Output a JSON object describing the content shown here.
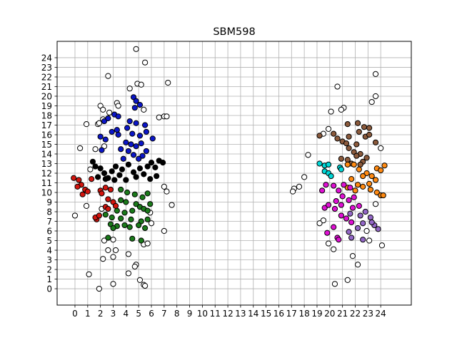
{
  "chart_data": {
    "type": "scatter",
    "title": "SBM598",
    "xlabel": "",
    "ylabel": "",
    "xlim": [
      -1.4,
      26.4
    ],
    "ylim": [
      -1.7,
      25.7
    ],
    "xticks": [
      0,
      1,
      2,
      3,
      4,
      5,
      6,
      7,
      8,
      9,
      10,
      11,
      12,
      13,
      14,
      15,
      16,
      17,
      18,
      19,
      20,
      21,
      22,
      23,
      24
    ],
    "yticks": [
      0,
      1,
      2,
      3,
      4,
      5,
      6,
      7,
      8,
      9,
      10,
      11,
      12,
      13,
      14,
      15,
      16,
      17,
      18,
      19,
      20,
      21,
      22,
      23,
      24
    ],
    "grid": true,
    "legend": "none",
    "marker_edge_color": "#000000",
    "series": [
      {
        "color": "#ffffff",
        "points": [
          [
            4.8,
            24.9
          ],
          [
            5.5,
            23.5
          ],
          [
            2.6,
            22.1
          ],
          [
            7.3,
            21.4
          ],
          [
            4.9,
            21.3
          ],
          [
            5.2,
            21.2
          ],
          [
            4.3,
            20.8
          ],
          [
            3.3,
            19.3
          ],
          [
            3.4,
            19.0
          ],
          [
            2.0,
            19.0
          ],
          [
            2.2,
            18.6
          ],
          [
            2.7,
            18.3
          ],
          [
            6.6,
            17.8
          ],
          [
            7.0,
            17.9
          ],
          [
            7.2,
            17.9
          ],
          [
            5.4,
            18.6
          ],
          [
            0.9,
            17.1
          ],
          [
            1.8,
            17.1
          ],
          [
            2.2,
            17.6
          ],
          [
            1.9,
            17.2
          ],
          [
            0.4,
            14.6
          ],
          [
            1.6,
            14.5
          ],
          [
            2.3,
            14.8
          ],
          [
            1.2,
            12.4
          ],
          [
            0.9,
            8.6
          ],
          [
            2.1,
            8.3
          ],
          [
            0.0,
            7.6
          ],
          [
            7.0,
            10.6
          ],
          [
            7.2,
            10.1
          ],
          [
            7.6,
            8.7
          ],
          [
            5.9,
            7.9
          ],
          [
            6.0,
            6.8
          ],
          [
            7.0,
            6.0
          ],
          [
            2.3,
            5.0
          ],
          [
            2.6,
            4.0
          ],
          [
            2.2,
            3.1
          ],
          [
            3.0,
            3.3
          ],
          [
            3.2,
            4.0
          ],
          [
            3.0,
            5.1
          ],
          [
            4.2,
            3.6
          ],
          [
            4.8,
            2.5
          ],
          [
            4.7,
            2.3
          ],
          [
            5.4,
            4.6
          ],
          [
            5.7,
            4.7
          ],
          [
            1.1,
            1.5
          ],
          [
            4.2,
            1.6
          ],
          [
            3.0,
            0.5
          ],
          [
            5.1,
            0.9
          ],
          [
            5.4,
            0.4
          ],
          [
            5.5,
            0.3
          ],
          [
            1.9,
            0.0
          ],
          [
            18.3,
            13.9
          ],
          [
            18.0,
            11.6
          ],
          [
            17.6,
            10.6
          ],
          [
            17.2,
            10.4
          ],
          [
            17.1,
            10.1
          ],
          [
            19.5,
            7.1
          ],
          [
            19.2,
            6.8
          ],
          [
            19.9,
            4.7
          ],
          [
            20.3,
            4.1
          ],
          [
            20.4,
            0.5
          ],
          [
            20.6,
            21.0
          ],
          [
            21.1,
            18.8
          ],
          [
            20.9,
            18.6
          ],
          [
            20.1,
            18.4
          ],
          [
            19.9,
            16.6
          ],
          [
            19.5,
            16.1
          ],
          [
            23.3,
            19.4
          ],
          [
            23.6,
            20.0
          ],
          [
            23.6,
            22.3
          ],
          [
            24.0,
            14.6
          ],
          [
            23.6,
            8.8
          ],
          [
            22.9,
            6.0
          ],
          [
            23.1,
            5.0
          ],
          [
            24.1,
            4.5
          ],
          [
            21.8,
            3.4
          ],
          [
            22.2,
            2.5
          ],
          [
            21.4,
            0.9
          ]
        ]
      },
      {
        "color": "#0b16c9",
        "points": [
          [
            4.6,
            19.9
          ],
          [
            4.8,
            19.5
          ],
          [
            5.1,
            19.1
          ],
          [
            4.7,
            18.8
          ],
          [
            3.1,
            18.1
          ],
          [
            3.4,
            17.9
          ],
          [
            2.3,
            17.4
          ],
          [
            2.6,
            17.7
          ],
          [
            4.3,
            17.4
          ],
          [
            4.8,
            17.2
          ],
          [
            5.5,
            17.0
          ],
          [
            4.1,
            16.7
          ],
          [
            3.3,
            16.5
          ],
          [
            2.9,
            16.3
          ],
          [
            3.4,
            16.0
          ],
          [
            4.5,
            16.1
          ],
          [
            5.1,
            15.9
          ],
          [
            5.6,
            16.3
          ],
          [
            6.1,
            15.6
          ],
          [
            2.0,
            15.8
          ],
          [
            2.4,
            15.5
          ],
          [
            4.0,
            15.2
          ],
          [
            4.4,
            15.0
          ],
          [
            4.8,
            14.8
          ],
          [
            5.2,
            15.1
          ],
          [
            3.6,
            14.5
          ],
          [
            4.2,
            14.3
          ],
          [
            5.6,
            14.3
          ],
          [
            2.1,
            14.4
          ],
          [
            4.6,
            13.9
          ],
          [
            5.3,
            13.8
          ],
          [
            3.8,
            13.5
          ],
          [
            5.0,
            13.5
          ]
        ]
      },
      {
        "color": "#000000",
        "points": [
          [
            1.4,
            13.2
          ],
          [
            1.6,
            12.7
          ],
          [
            2.0,
            12.5
          ],
          [
            2.3,
            12.0
          ],
          [
            1.8,
            11.6
          ],
          [
            2.6,
            11.5
          ],
          [
            2.9,
            12.2
          ],
          [
            3.2,
            12.7
          ],
          [
            3.5,
            11.8
          ],
          [
            3.7,
            12.4
          ],
          [
            4.0,
            11.3
          ],
          [
            4.2,
            12.9
          ],
          [
            4.6,
            12.1
          ],
          [
            4.8,
            11.6
          ],
          [
            5.1,
            12.5
          ],
          [
            5.4,
            11.9
          ],
          [
            5.7,
            12.7
          ],
          [
            6.0,
            13.1
          ],
          [
            6.3,
            12.6
          ],
          [
            6.6,
            13.3
          ],
          [
            6.9,
            13.1
          ],
          [
            6.4,
            11.7
          ],
          [
            5.9,
            11.4
          ],
          [
            3.1,
            11.3
          ],
          [
            2.4,
            11.4
          ]
        ]
      },
      {
        "color": "#d4150e",
        "points": [
          [
            -0.1,
            11.5
          ],
          [
            0.3,
            11.3
          ],
          [
            0.5,
            10.8
          ],
          [
            0.8,
            10.3
          ],
          [
            1.0,
            10.1
          ],
          [
            1.3,
            11.4
          ],
          [
            0.2,
            10.6
          ],
          [
            0.6,
            9.8
          ],
          [
            2.0,
            10.2
          ],
          [
            2.4,
            10.5
          ],
          [
            2.8,
            10.3
          ],
          [
            2.1,
            9.9
          ],
          [
            2.6,
            9.3
          ],
          [
            3.0,
            9.0
          ],
          [
            2.4,
            8.5
          ],
          [
            2.6,
            8.3
          ],
          [
            3.2,
            8.6
          ],
          [
            1.7,
            7.2
          ],
          [
            1.6,
            7.4
          ],
          [
            1.9,
            7.6
          ]
        ]
      },
      {
        "color": "#1a7a1a",
        "points": [
          [
            3.6,
            10.3
          ],
          [
            4.1,
            10.0
          ],
          [
            4.7,
            9.8
          ],
          [
            5.3,
            9.5
          ],
          [
            5.7,
            9.9
          ],
          [
            3.6,
            9.2
          ],
          [
            4.0,
            9.0
          ],
          [
            4.8,
            8.8
          ],
          [
            5.1,
            8.5
          ],
          [
            5.4,
            8.3
          ],
          [
            3.3,
            8.1
          ],
          [
            3.9,
            7.9
          ],
          [
            4.5,
            8.1
          ],
          [
            2.4,
            7.7
          ],
          [
            2.9,
            7.4
          ],
          [
            3.6,
            7.3
          ],
          [
            4.4,
            7.2
          ],
          [
            5.2,
            7.0
          ],
          [
            5.7,
            7.2
          ],
          [
            2.8,
            6.7
          ],
          [
            3.3,
            6.5
          ],
          [
            3.9,
            6.6
          ],
          [
            4.3,
            6.4
          ],
          [
            5.0,
            6.6
          ],
          [
            5.5,
            6.3
          ],
          [
            2.6,
            5.3
          ],
          [
            4.5,
            5.2
          ],
          [
            5.2,
            5.0
          ],
          [
            3.0,
            6.3
          ],
          [
            5.9,
            8.8
          ],
          [
            5.7,
            8.1
          ]
        ]
      },
      {
        "color": "#8b5a3c",
        "points": [
          [
            19.2,
            15.9
          ],
          [
            20.3,
            16.1
          ],
          [
            20.6,
            15.6
          ],
          [
            21.0,
            15.3
          ],
          [
            21.5,
            15.8
          ],
          [
            21.4,
            17.1
          ],
          [
            22.2,
            17.2
          ],
          [
            22.7,
            16.8
          ],
          [
            23.1,
            16.7
          ],
          [
            22.3,
            16.3
          ],
          [
            22.8,
            15.8
          ],
          [
            21.3,
            15.1
          ],
          [
            21.5,
            14.6
          ],
          [
            21.9,
            14.2
          ],
          [
            22.4,
            14.0
          ],
          [
            22.9,
            13.6
          ],
          [
            20.9,
            13.5
          ],
          [
            21.4,
            13.4
          ],
          [
            22.1,
            13.8
          ],
          [
            22.6,
            13.2
          ],
          [
            21.7,
            13.0
          ],
          [
            22.4,
            12.9
          ],
          [
            23.6,
            15.2
          ],
          [
            23.1,
            16.0
          ],
          [
            22.1,
            15.0
          ]
        ]
      },
      {
        "color": "#00d7d7",
        "points": [
          [
            19.2,
            13.0
          ],
          [
            19.6,
            12.8
          ],
          [
            19.9,
            12.9
          ],
          [
            19.6,
            12.2
          ],
          [
            19.9,
            12.0
          ],
          [
            20.1,
            11.7
          ],
          [
            20.8,
            12.6
          ],
          [
            20.9,
            12.4
          ]
        ]
      },
      {
        "color": "#ff8a12",
        "points": [
          [
            21.9,
            12.9
          ],
          [
            22.3,
            12.4
          ],
          [
            22.9,
            12.0
          ],
          [
            23.3,
            11.7
          ],
          [
            23.7,
            12.5
          ],
          [
            24.3,
            12.8
          ],
          [
            24.0,
            12.3
          ],
          [
            23.6,
            11.3
          ],
          [
            23.1,
            10.9
          ],
          [
            22.6,
            10.6
          ],
          [
            22.2,
            10.8
          ],
          [
            21.7,
            11.4
          ],
          [
            21.4,
            10.5
          ],
          [
            22.0,
            10.2
          ],
          [
            23.7,
            10.0
          ],
          [
            24.0,
            9.7
          ],
          [
            24.2,
            9.7
          ],
          [
            23.2,
            10.3
          ],
          [
            22.6,
            11.7
          ],
          [
            21.4,
            12.9
          ]
        ]
      },
      {
        "color": "#e010d4",
        "points": [
          [
            19.4,
            10.2
          ],
          [
            19.7,
            10.8
          ],
          [
            20.3,
            10.7
          ],
          [
            20.7,
            10.2
          ],
          [
            21.1,
            10.8
          ],
          [
            21.6,
            10.5
          ],
          [
            21.0,
            9.6
          ],
          [
            21.5,
            9.2
          ],
          [
            21.9,
            9.5
          ],
          [
            20.5,
            9.1
          ],
          [
            20.9,
            8.7
          ],
          [
            19.6,
            8.4
          ],
          [
            19.9,
            8.7
          ],
          [
            20.4,
            8.3
          ],
          [
            21.8,
            8.4
          ],
          [
            22.3,
            8.6
          ],
          [
            20.9,
            7.6
          ],
          [
            21.3,
            7.3
          ],
          [
            21.7,
            6.9
          ],
          [
            20.3,
            6.4
          ],
          [
            19.8,
            5.8
          ],
          [
            20.6,
            5.3
          ],
          [
            20.7,
            5.1
          ]
        ]
      },
      {
        "color": "#9468c8",
        "points": [
          [
            21.6,
            7.8
          ],
          [
            22.4,
            7.6
          ],
          [
            22.8,
            8.0
          ],
          [
            23.2,
            7.4
          ],
          [
            22.6,
            6.8
          ],
          [
            22.2,
            6.3
          ],
          [
            21.7,
            5.3
          ],
          [
            22.6,
            5.1
          ],
          [
            23.5,
            6.6
          ],
          [
            23.8,
            6.2
          ],
          [
            23.3,
            6.9
          ],
          [
            21.5,
            5.9
          ]
        ]
      }
    ]
  }
}
